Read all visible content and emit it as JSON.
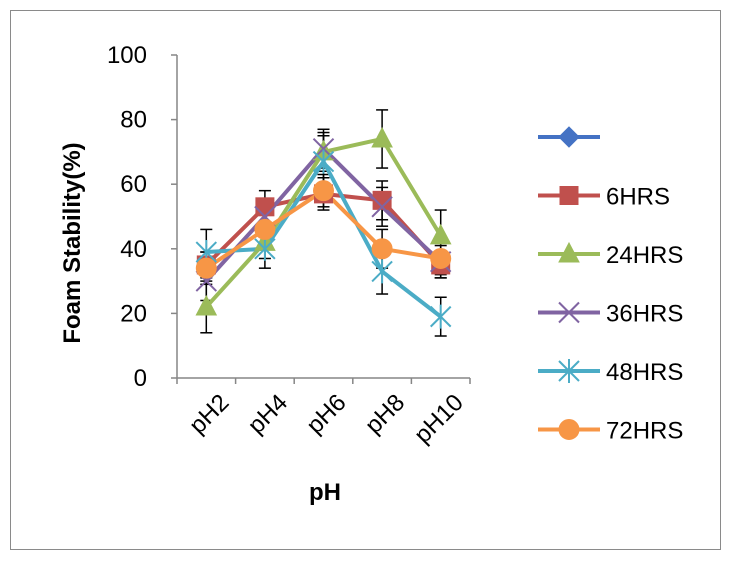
{
  "chart_data": {
    "type": "line",
    "title": "",
    "xlabel": "pH",
    "ylabel": "Foam Stability(%)",
    "categories": [
      "pH2",
      "pH4",
      "pH6",
      "pH8",
      "pH10"
    ],
    "ylim": [
      0,
      100
    ],
    "yticks": [
      0,
      20,
      40,
      60,
      80,
      100
    ],
    "grid": false,
    "legend_position": "right",
    "error_bars": true,
    "series": [
      {
        "name": "",
        "marker": "diamond",
        "color": "#4472c4",
        "values": [
          null,
          null,
          null,
          null,
          null
        ],
        "errors": [
          null,
          null,
          null,
          null,
          null
        ]
      },
      {
        "name": "6HRS",
        "marker": "square",
        "color": "#c0504d",
        "values": [
          35,
          53,
          57,
          55,
          35
        ],
        "errors": [
          4,
          5,
          5,
          6,
          4
        ]
      },
      {
        "name": "24HRS",
        "marker": "triangle",
        "color": "#9bbb59",
        "values": [
          22,
          42,
          70,
          74,
          44
        ],
        "errors": [
          8,
          5,
          6,
          9,
          8
        ]
      },
      {
        "name": "36HRS",
        "marker": "x",
        "color": "#8064a2",
        "values": [
          30,
          50,
          71,
          53,
          36
        ],
        "errors": [
          6,
          5,
          6,
          6,
          5
        ]
      },
      {
        "name": "48HRS",
        "marker": "star",
        "color": "#4bacc6",
        "values": [
          39,
          40,
          67,
          33,
          19
        ],
        "errors": [
          7,
          6,
          8,
          7,
          6
        ]
      },
      {
        "name": "72HRS",
        "marker": "circle",
        "color": "#f79646",
        "values": [
          34,
          46,
          58,
          40,
          37
        ],
        "errors": [
          5,
          5,
          5,
          6,
          5
        ]
      }
    ]
  }
}
